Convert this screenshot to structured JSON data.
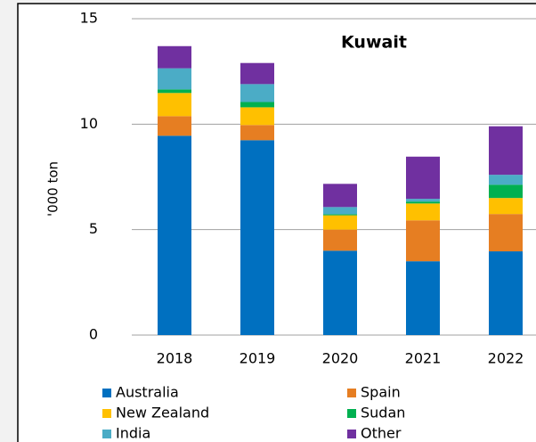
{
  "chart_data": {
    "type": "stacked_bar",
    "title": "Kuwait",
    "y_label": "'000 ton",
    "categories": [
      "2018",
      "2019",
      "2020",
      "2021",
      "2022"
    ],
    "series": [
      {
        "name": "Australia",
        "color": "#0070c0",
        "values": [
          9.45,
          9.24,
          4.0,
          3.5,
          3.97
        ]
      },
      {
        "name": "Spain",
        "color": "#e67e22",
        "values": [
          0.93,
          0.72,
          1.0,
          1.94,
          1.77
        ]
      },
      {
        "name": "New Zealand",
        "color": "#ffc000",
        "values": [
          1.1,
          0.84,
          0.68,
          0.8,
          0.76
        ]
      },
      {
        "name": "Sudan",
        "color": "#00b050",
        "values": [
          0.17,
          0.25,
          0.05,
          0.09,
          0.63
        ]
      },
      {
        "name": "India",
        "color": "#4bacc6",
        "values": [
          1.0,
          0.85,
          0.34,
          0.13,
          0.47
        ]
      },
      {
        "name": "Other",
        "color": "#7030a0",
        "values": [
          1.05,
          1.0,
          1.1,
          2.0,
          2.3
        ]
      }
    ],
    "ylim": [
      0,
      15
    ],
    "yticks": [
      0,
      5,
      10,
      15
    ],
    "grid": true,
    "legend": "bottom"
  }
}
